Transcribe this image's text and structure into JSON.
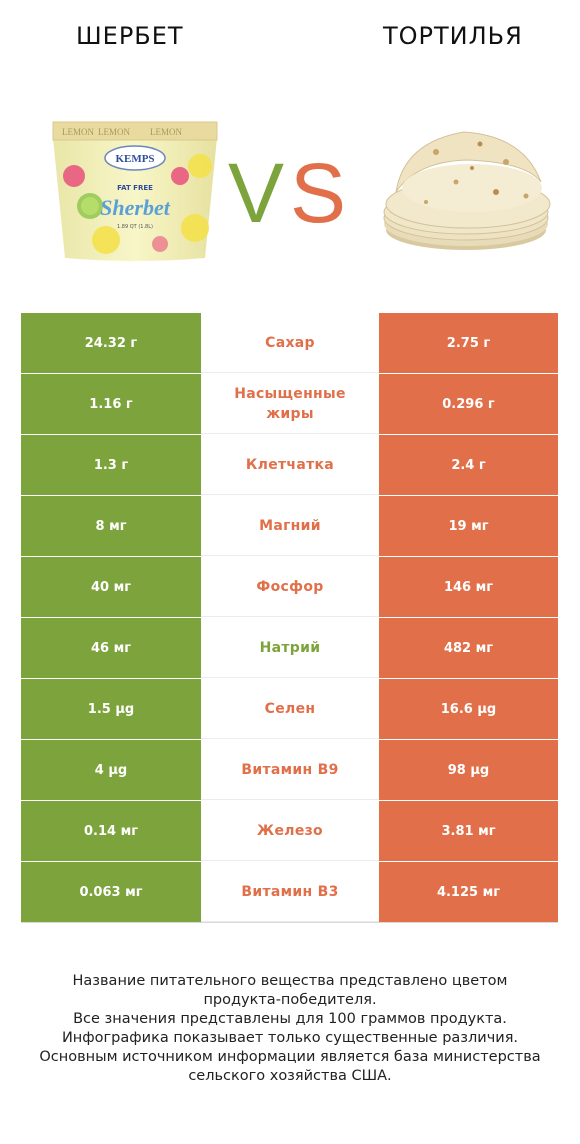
{
  "header": {
    "left_title": "ШЕРБЕТ",
    "right_title": "ТОРТИЛЬЯ"
  },
  "sherbet_image": {
    "strip_text": "LEMON",
    "brand": "KEMPS",
    "label_top": "FAT FREE",
    "label_main": "Sherbet",
    "size_text": "1.89 QT (1.8L)"
  },
  "vs": {
    "letter_v": "V",
    "letter_s": "S"
  },
  "colors": {
    "winner_left": "#7da43c",
    "winner_right": "#e1704a"
  },
  "rows": [
    {
      "left": "24.32 г",
      "name": "Сахар",
      "right": "2.75 г",
      "winner": "right"
    },
    {
      "left": "1.16 г",
      "name": "Насыщенные жиры",
      "right": "0.296 г",
      "winner": "right"
    },
    {
      "left": "1.3 г",
      "name": "Клетчатка",
      "right": "2.4 г",
      "winner": "right"
    },
    {
      "left": "8 мг",
      "name": "Магний",
      "right": "19 мг",
      "winner": "right"
    },
    {
      "left": "40 мг",
      "name": "Фосфор",
      "right": "146 мг",
      "winner": "right"
    },
    {
      "left": "46 мг",
      "name": "Натрий",
      "right": "482 мг",
      "winner": "left"
    },
    {
      "left": "1.5 µg",
      "name": "Селен",
      "right": "16.6 µg",
      "winner": "right"
    },
    {
      "left": "4 µg",
      "name": "Витамин B9",
      "right": "98 µg",
      "winner": "right"
    },
    {
      "left": "0.14 мг",
      "name": "Железо",
      "right": "3.81 мг",
      "winner": "right"
    },
    {
      "left": "0.063 мг",
      "name": "Витамин B3",
      "right": "4.125 мг",
      "winner": "right"
    }
  ],
  "footer": {
    "line1": "Название питательного вещества представлено цветом",
    "line2": "продукта-победителя.",
    "line3": "Все значения представлены для 100 граммов продукта.",
    "line4": "Инфографика показывает только существенные различия.",
    "line5": "Основным источником информации является база министерства",
    "line6": "сельского хозяйства США."
  }
}
